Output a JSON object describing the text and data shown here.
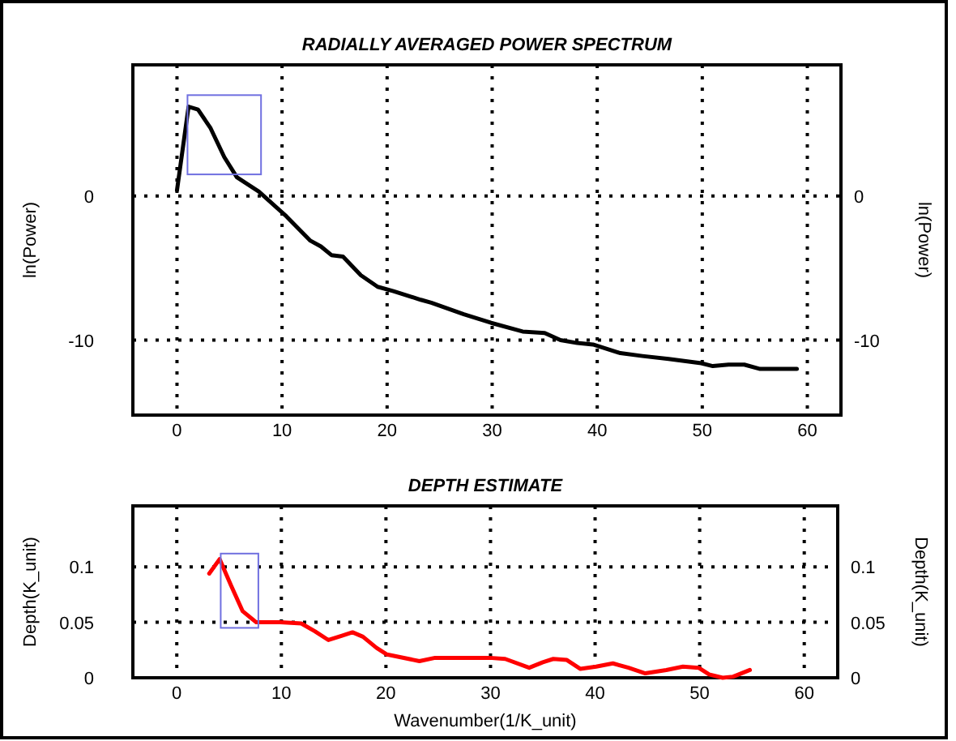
{
  "chart_data": [
    {
      "type": "line",
      "title": "RADIALLY AVERAGED POWER SPECTRUM",
      "ylabel": "ln(Power)",
      "y2label": "ln(Power)",
      "xlim": [
        -4.2,
        63.2
      ],
      "xticks": [
        0,
        10,
        20,
        30,
        40,
        50,
        60
      ],
      "ylim": [
        -15.2,
        9.1
      ],
      "yticks": [
        -10,
        0
      ],
      "y2lim": [
        -15.2,
        9.1
      ],
      "y2ticks": [
        -10,
        0
      ],
      "grid": true,
      "line_style": "solid",
      "marker": "none",
      "series": [
        {
          "color": "#000000",
          "x": [
            0,
            1.1,
            2.0,
            3.2,
            4.5,
            5.7,
            7.8,
            10.4,
            12.7,
            13.7,
            14.7,
            15.8,
            17.5,
            19.1,
            20.6,
            23.2,
            24.2,
            27.3,
            29.9,
            32.9,
            35.0,
            36.5,
            38.1,
            39.6,
            42.2,
            44.3,
            46.8,
            49.9,
            51,
            52.5,
            54,
            55.5,
            59
          ],
          "values": [
            0.4,
            6.2,
            6.0,
            4.7,
            2.7,
            1.3,
            0.3,
            -1.4,
            -3.1,
            -3.5,
            -4.1,
            -4.2,
            -5.5,
            -6.3,
            -6.6,
            -7.2,
            -7.4,
            -8.2,
            -8.8,
            -9.4,
            -9.5,
            -10,
            -10.2,
            -10.3,
            -10.9,
            -11.1,
            -11.3,
            -11.6,
            -11.8,
            -11.7,
            -11.7,
            -12,
            -12
          ]
        }
      ]
    },
    {
      "type": "line",
      "title": "DEPTH ESTIMATE",
      "xlabel": "Wavenumber(1/K_unit)",
      "ylabel": "Depth(K_unit)",
      "y2label": "Depth(K_unit)",
      "xlim": [
        -4.2,
        63.2
      ],
      "xticks": [
        0,
        10,
        20,
        30,
        40,
        50,
        60
      ],
      "ylim": [
        0,
        0.155
      ],
      "yticks": [
        0,
        0.05,
        0.1
      ],
      "y2lim": [
        0,
        0.155
      ],
      "y2ticks": [
        0,
        0.05,
        0.1
      ],
      "grid": true,
      "line_style": "solid",
      "marker": "none",
      "series": [
        {
          "color": "#ff0000",
          "x": [
            3.1,
            4.1,
            5.2,
            6.3,
            7.6,
            9.9,
            11.9,
            13.2,
            14.5,
            15.8,
            16.8,
            17.8,
            19.1,
            20.1,
            23.2,
            24.7,
            27.3,
            29.9,
            31.4,
            33.7,
            35,
            36,
            37.3,
            38.6,
            40.1,
            41.7,
            43.2,
            44.8,
            46.8,
            48.4,
            49.9,
            50.9,
            52.2,
            53.2,
            54.8
          ],
          "values": [
            0.094,
            0.107,
            0.083,
            0.06,
            0.05,
            0.05,
            0.049,
            0.042,
            0.034,
            0.038,
            0.041,
            0.037,
            0.027,
            0.021,
            0.015,
            0.018,
            0.018,
            0.018,
            0.017,
            0.009,
            0.014,
            0.017,
            0.016,
            0.008,
            0.01,
            0.013,
            0.009,
            0.004,
            0.007,
            0.01,
            0.009,
            0.003,
            0,
            0.001,
            0.007
          ]
        }
      ]
    }
  ]
}
